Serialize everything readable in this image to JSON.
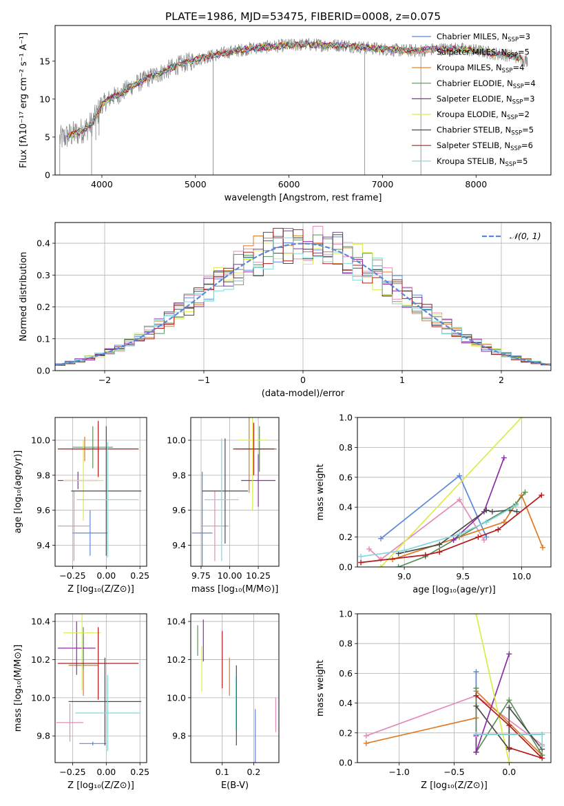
{
  "figure_title": "PLATE=1986, MJD=53475, FIBERID=0008, z=0.075",
  "colors": {
    "chabrier_miles": "#5b86db",
    "salpeter_miles": "#e58ab8",
    "kroupa_miles": "#e07820",
    "chabrier_elodie": "#5a8f5a",
    "salpeter_elodie": "#8e2aa6",
    "kroupa_elodie": "#d9ec4a",
    "chabrier_stelib": "#4a4a4a",
    "salpeter_stelib": "#b01a1a",
    "kroupa_stelib": "#7fd7d9",
    "data": "#808080",
    "gaussian": "#5b86db"
  },
  "models": [
    {
      "key": "chabrier_miles",
      "label": "Chabrier MILES, N",
      "nssp": "=3"
    },
    {
      "key": "salpeter_miles",
      "label": "Salpeter MILES, N",
      "nssp": "=5"
    },
    {
      "key": "kroupa_miles",
      "label": "Kroupa MILES, N",
      "nssp": "=4"
    },
    {
      "key": "chabrier_elodie",
      "label": "Chabrier ELODIE, N",
      "nssp": "=4"
    },
    {
      "key": "salpeter_elodie",
      "label": "Salpeter ELODIE, N",
      "nssp": "=3"
    },
    {
      "key": "kroupa_elodie",
      "label": "Kroupa ELODIE, N",
      "nssp": "=2"
    },
    {
      "key": "chabrier_stelib",
      "label": "Chabrier STELIB, N",
      "nssp": "=5"
    },
    {
      "key": "salpeter_stelib",
      "label": "Salpeter STELIB, N",
      "nssp": "=6"
    },
    {
      "key": "kroupa_stelib",
      "label": "Kroupa STELIB, N",
      "nssp": "=5"
    }
  ],
  "nssp_subscript": "SSP",
  "chart_data": [
    {
      "id": "spectrum",
      "type": "line",
      "xlabel": "wavelength [Angstrom, rest frame]",
      "ylabel": "Flux [fλ10⁻¹⁷ erg cm⁻² s⁻¹ A⁻¹]",
      "xlim": [
        3500,
        8800
      ],
      "ylim": [
        0,
        19.7
      ],
      "xticks": [
        4000,
        5000,
        6000,
        7000,
        8000
      ],
      "yticks": [
        0,
        5,
        10,
        15
      ],
      "grid": false,
      "legend_position": "top-right",
      "continuum": [
        [
          3570,
          4.8
        ],
        [
          3650,
          5.2
        ],
        [
          3750,
          5.6
        ],
        [
          3850,
          6.3
        ],
        [
          3900,
          6.9
        ],
        [
          3950,
          8.0
        ],
        [
          4000,
          9.3
        ],
        [
          4100,
          10.2
        ],
        [
          4200,
          10.7
        ],
        [
          4300,
          11.6
        ],
        [
          4400,
          12.2
        ],
        [
          4500,
          12.8
        ],
        [
          4600,
          13.3
        ],
        [
          4800,
          14.4
        ],
        [
          5000,
          15.2
        ],
        [
          5200,
          15.8
        ],
        [
          5400,
          16.3
        ],
        [
          5600,
          16.7
        ],
        [
          5800,
          16.9
        ],
        [
          6000,
          17.1
        ],
        [
          6200,
          17.2
        ],
        [
          6400,
          17.1
        ],
        [
          6600,
          17.1
        ],
        [
          6800,
          16.8
        ],
        [
          7000,
          16.6
        ],
        [
          7200,
          16.4
        ],
        [
          7400,
          16.4
        ],
        [
          7600,
          16.6
        ],
        [
          7800,
          16.6
        ],
        [
          8000,
          16.4
        ],
        [
          8200,
          16.0
        ],
        [
          8400,
          15.7
        ],
        [
          8550,
          15.0
        ]
      ],
      "features": [
        {
          "x": 3550,
          "y": 0
        },
        {
          "x": 3890,
          "y": 0
        },
        {
          "x": 3935,
          "y": 4.6
        },
        {
          "x": 3970,
          "y": 5.2
        },
        {
          "x": 5190,
          "y": 0
        },
        {
          "x": 6810,
          "y": 0
        },
        {
          "x": 7410,
          "y": 0
        }
      ]
    },
    {
      "id": "residuals",
      "type": "histogram",
      "xlabel": "(data-model)/error",
      "ylabel": "Normed distribution",
      "xlim": [
        -2.5,
        2.5
      ],
      "ylim": [
        0,
        0.465
      ],
      "xticks": [
        -2,
        -1,
        0,
        1,
        2
      ],
      "xtick_labels": [
        "−2",
        "−1",
        "0",
        "1",
        "2"
      ],
      "yticks": [
        0.0,
        0.1,
        0.2,
        0.3,
        0.4
      ],
      "grid": true,
      "legend": "𝒩(0, 1)",
      "bin_width": 0.1,
      "gaussian": {
        "mu": 0,
        "sigma": 1
      }
    },
    {
      "id": "age_vs_z",
      "type": "errorbar",
      "xlabel": "Z [log₁₀(Z/Z⊙)]",
      "ylabel": "age  [log₁₀(age/yr)]",
      "xlim": [
        -0.38,
        0.3
      ],
      "ylim": [
        9.28,
        10.13
      ],
      "xticks": [
        -0.25,
        0.0,
        0.25
      ],
      "xtick_labels": [
        "−0.25",
        "0.00",
        "0.25"
      ],
      "yticks": [
        9.4,
        9.6,
        9.8,
        10.0
      ],
      "grid": true,
      "points": [
        {
          "key": "chabrier_miles",
          "x": -0.12,
          "xerr": 0.13,
          "y": 9.47,
          "yerr": 0.13
        },
        {
          "key": "salpeter_miles",
          "x": -0.24,
          "xerr": 0.12,
          "y": 9.51,
          "yerr": 0.2
        },
        {
          "key": "kroupa_miles",
          "x": -0.16,
          "xerr": 0.1,
          "y": 9.95,
          "yerr": 0.07
        },
        {
          "key": "chabrier_elodie",
          "x": -0.1,
          "xerr": 0.15,
          "y": 9.96,
          "yerr": 0.12
        },
        {
          "key": "salpeter_elodie",
          "x": -0.21,
          "xerr": 0.15,
          "y": 9.77,
          "yerr": 0.05
        },
        {
          "key": "kroupa_elodie",
          "x": -0.17,
          "xerr": 0.15,
          "y": 9.77,
          "yerr": 0.23
        },
        {
          "key": "chabrier_stelib",
          "x": 0.0,
          "xerr": 0.26,
          "y": 9.71,
          "yerr": 0.37
        },
        {
          "key": "salpeter_stelib",
          "x": -0.06,
          "xerr": 0.3,
          "y": 9.95,
          "yerr": 0.16
        },
        {
          "key": "kroupa_stelib",
          "x": 0.01,
          "xerr": 0.23,
          "y": 9.66,
          "yerr": 0.33
        }
      ]
    },
    {
      "id": "age_vs_mass",
      "type": "errorbar",
      "xlabel": "mass [log₁₀(M/M⊙)]",
      "xlim": [
        9.66,
        10.43
      ],
      "ylim": [
        9.28,
        10.13
      ],
      "xticks": [
        9.75,
        10.0,
        10.25
      ],
      "xtick_labels": [
        "9.75",
        "10.00",
        "10.25"
      ],
      "yticks": [
        9.4,
        9.6,
        9.8,
        10.0
      ],
      "grid": true,
      "points": [
        {
          "key": "chabrier_miles",
          "x": 9.76,
          "xerr": 0.09,
          "y": 9.47,
          "yerr": 0.35
        },
        {
          "key": "salpeter_miles",
          "x": 9.87,
          "xerr": 0.12,
          "y": 9.51,
          "yerr": 0.2
        },
        {
          "key": "kroupa_miles",
          "x": 10.17,
          "xerr": 0.12,
          "y": 9.95,
          "yerr": 0.25
        },
        {
          "key": "chabrier_elodie",
          "x": 10.26,
          "xerr": 0.15,
          "y": 9.95,
          "yerr": 0.13
        },
        {
          "key": "salpeter_elodie",
          "x": 10.25,
          "xerr": 0.15,
          "y": 9.77,
          "yerr": 0.15
        },
        {
          "key": "kroupa_elodie",
          "x": 10.2,
          "xerr": 0.13,
          "y": 10.0,
          "yerr": 0.4
        },
        {
          "key": "chabrier_stelib",
          "x": 9.96,
          "xerr": 0.2,
          "y": 9.71,
          "yerr": 0.3
        },
        {
          "key": "salpeter_stelib",
          "x": 10.21,
          "xerr": 0.18,
          "y": 9.95,
          "yerr": 0.15
        },
        {
          "key": "kroupa_stelib",
          "x": 9.93,
          "xerr": 0.15,
          "y": 9.66,
          "yerr": 0.35
        }
      ]
    },
    {
      "id": "weight_vs_age",
      "type": "line",
      "xlabel": "age  [log₁₀(age/yr)]",
      "ylabel": "mass weight",
      "xlim": [
        8.6,
        10.25
      ],
      "ylim": [
        0.0,
        1.0
      ],
      "xticks": [
        9.0,
        9.5,
        10.0
      ],
      "xtick_labels": [
        "9.0",
        "9.5",
        "10.0"
      ],
      "yticks": [
        0.0,
        0.2,
        0.4,
        0.6,
        0.8,
        1.0
      ],
      "grid": true,
      "series": [
        {
          "key": "chabrier_miles",
          "points": [
            [
              8.8,
              0.19
            ],
            [
              9.47,
              0.61
            ],
            [
              9.7,
              0.2
            ]
          ]
        },
        {
          "key": "salpeter_miles",
          "points": [
            [
              8.7,
              0.12
            ],
            [
              8.8,
              0.05
            ],
            [
              9.47,
              0.45
            ],
            [
              9.68,
              0.18
            ]
          ]
        },
        {
          "key": "kroupa_miles",
          "points": [
            [
              8.9,
              0.05
            ],
            [
              9.47,
              0.2
            ],
            [
              9.85,
              0.3
            ],
            [
              10.0,
              0.48
            ],
            [
              10.18,
              0.13
            ]
          ]
        },
        {
          "key": "chabrier_elodie",
          "points": [
            [
              8.95,
              0.0
            ],
            [
              9.18,
              0.07
            ],
            [
              9.95,
              0.42
            ],
            [
              10.03,
              0.5
            ]
          ]
        },
        {
          "key": "salpeter_elodie",
          "points": [
            [
              9.42,
              0.18
            ],
            [
              9.68,
              0.37
            ],
            [
              9.85,
              0.73
            ]
          ]
        },
        {
          "key": "kroupa_elodie",
          "points": [
            [
              8.8,
              0.0
            ],
            [
              10.0,
              1.0
            ]
          ]
        },
        {
          "key": "chabrier_stelib",
          "points": [
            [
              8.95,
              0.09
            ],
            [
              9.3,
              0.15
            ],
            [
              9.7,
              0.38
            ],
            [
              9.75,
              0.37
            ],
            [
              9.9,
              0.38
            ],
            [
              9.96,
              0.37
            ]
          ]
        },
        {
          "key": "salpeter_stelib",
          "points": [
            [
              8.63,
              0.03
            ],
            [
              9.18,
              0.08
            ],
            [
              9.3,
              0.1
            ],
            [
              9.63,
              0.2
            ],
            [
              9.8,
              0.25
            ],
            [
              10.17,
              0.48
            ]
          ]
        },
        {
          "key": "kroupa_stelib",
          "points": [
            [
              8.63,
              0.07
            ],
            [
              9.0,
              0.11
            ],
            [
              9.47,
              0.22
            ],
            [
              9.7,
              0.3
            ],
            [
              9.95,
              0.41
            ]
          ]
        }
      ]
    },
    {
      "id": "mass_vs_z",
      "type": "errorbar",
      "xlabel": "Z [log₁₀(Z/Z⊙)]",
      "ylabel": "mass [log₁₀(M/M⊙)]",
      "xlim": [
        -0.38,
        0.3
      ],
      "ylim": [
        9.66,
        10.44
      ],
      "xticks": [
        -0.25,
        0.0,
        0.25
      ],
      "xtick_labels": [
        "−0.25",
        "0.00",
        "0.25"
      ],
      "yticks": [
        9.8,
        10.0,
        10.2,
        10.4
      ],
      "grid": true,
      "points": [
        {
          "key": "chabrier_miles",
          "x": -0.1,
          "xerr": 0.1,
          "y": 9.76,
          "yerr": 0.01
        },
        {
          "key": "salpeter_miles",
          "x": -0.27,
          "xerr": 0.1,
          "y": 9.87,
          "yerr": 0.1
        },
        {
          "key": "kroupa_miles",
          "x": -0.17,
          "xerr": 0.11,
          "y": 10.17,
          "yerr": 0.16
        },
        {
          "key": "chabrier_elodie",
          "x": -0.17,
          "xerr": 0.01,
          "y": 10.26,
          "yerr": 0.11
        },
        {
          "key": "salpeter_elodie",
          "x": -0.22,
          "xerr": 0.14,
          "y": 10.26,
          "yerr": 0.14
        },
        {
          "key": "kroupa_elodie",
          "x": -0.18,
          "xerr": 0.14,
          "y": 10.34,
          "yerr": 0.3
        },
        {
          "key": "chabrier_stelib",
          "x": -0.01,
          "xerr": 0.27,
          "y": 9.98,
          "yerr": 0.23
        },
        {
          "key": "salpeter_stelib",
          "x": -0.06,
          "xerr": 0.3,
          "y": 10.18,
          "yerr": 0.19
        },
        {
          "key": "kroupa_stelib",
          "x": 0.01,
          "xerr": 0.24,
          "y": 9.92,
          "yerr": 0.2
        }
      ]
    },
    {
      "id": "mass_vs_ebv",
      "type": "errorbar",
      "xlabel": "E(B-V)",
      "xlim": [
        0.0,
        0.28
      ],
      "ylim": [
        9.66,
        10.44
      ],
      "xticks": [
        0.1,
        0.2
      ],
      "xtick_labels": [
        "0.1",
        "0.2"
      ],
      "yticks": [
        9.8,
        10.0,
        10.2,
        10.4
      ],
      "grid": true,
      "points": [
        {
          "key": "chabrier_miles",
          "x": 0.205,
          "y": 9.8,
          "yerr": 0.14
        },
        {
          "key": "salpeter_miles",
          "x": 0.27,
          "y": 9.91,
          "yerr": 0.09
        },
        {
          "key": "kroupa_miles",
          "x": 0.123,
          "y": 10.11,
          "yerr": 0.1
        },
        {
          "key": "chabrier_elodie",
          "x": 0.022,
          "y": 10.3,
          "yerr": 0.08
        },
        {
          "key": "salpeter_elodie",
          "x": 0.04,
          "y": 10.3,
          "yerr": 0.11
        },
        {
          "key": "kroupa_elodie",
          "x": 0.035,
          "y": 10.15,
          "yerr": 0.12
        },
        {
          "key": "chabrier_stelib",
          "x": 0.145,
          "y": 9.96,
          "yerr": 0.21
        },
        {
          "key": "salpeter_stelib",
          "x": 0.1,
          "y": 10.2,
          "yerr": 0.15
        },
        {
          "key": "kroupa_stelib",
          "x": 0.143,
          "y": 9.97,
          "yerr": 0.14
        }
      ]
    },
    {
      "id": "weight_vs_z",
      "type": "line",
      "xlabel": "Z [log₁₀(Z/Z⊙)]",
      "ylabel": "mass weight",
      "xlim": [
        -1.38,
        0.38
      ],
      "ylim": [
        0.0,
        1.0
      ],
      "xticks": [
        -1.0,
        -0.5,
        0.0
      ],
      "xtick_labels": [
        "−1.0",
        "−0.5",
        "0.0"
      ],
      "yticks": [
        0.0,
        0.2,
        0.4,
        0.6,
        0.8,
        1.0
      ],
      "grid": true,
      "series": [
        {
          "key": "chabrier_miles",
          "points": [
            [
              -0.3,
              0.61
            ],
            [
              -0.3,
              0.19
            ],
            [
              0.3,
              0.19
            ]
          ]
        },
        {
          "key": "salpeter_miles",
          "points": [
            [
              -1.3,
              0.18
            ],
            [
              -0.3,
              0.45
            ],
            [
              0.3,
              0.12
            ]
          ]
        },
        {
          "key": "kroupa_miles",
          "points": [
            [
              -1.3,
              0.13
            ],
            [
              -0.3,
              0.3
            ],
            [
              -0.3,
              0.48
            ],
            [
              0.3,
              0.05
            ]
          ]
        },
        {
          "key": "chabrier_elodie",
          "points": [
            [
              -0.3,
              0.5
            ],
            [
              -0.3,
              0.07
            ],
            [
              0.0,
              0.42
            ],
            [
              0.3,
              0.05
            ]
          ]
        },
        {
          "key": "salpeter_elodie",
          "points": [
            [
              -0.3,
              0.18
            ],
            [
              -0.3,
              0.07
            ],
            [
              0.0,
              0.73
            ]
          ]
        },
        {
          "key": "kroupa_elodie",
          "points": [
            [
              -0.3,
              1.0
            ],
            [
              0.0,
              0.0
            ]
          ]
        },
        {
          "key": "chabrier_stelib",
          "points": [
            [
              -0.3,
              0.38
            ],
            [
              0.0,
              0.09
            ],
            [
              0.0,
              0.37
            ],
            [
              0.3,
              0.09
            ]
          ]
        },
        {
          "key": "salpeter_stelib",
          "points": [
            [
              -0.3,
              0.45
            ],
            [
              0.0,
              0.25
            ],
            [
              0.3,
              0.03
            ],
            [
              0.0,
              0.1
            ]
          ]
        },
        {
          "key": "kroupa_stelib",
          "points": [
            [
              -0.3,
              0.19
            ],
            [
              0.3,
              0.19
            ],
            [
              0.3,
              0.11
            ]
          ]
        }
      ]
    }
  ]
}
